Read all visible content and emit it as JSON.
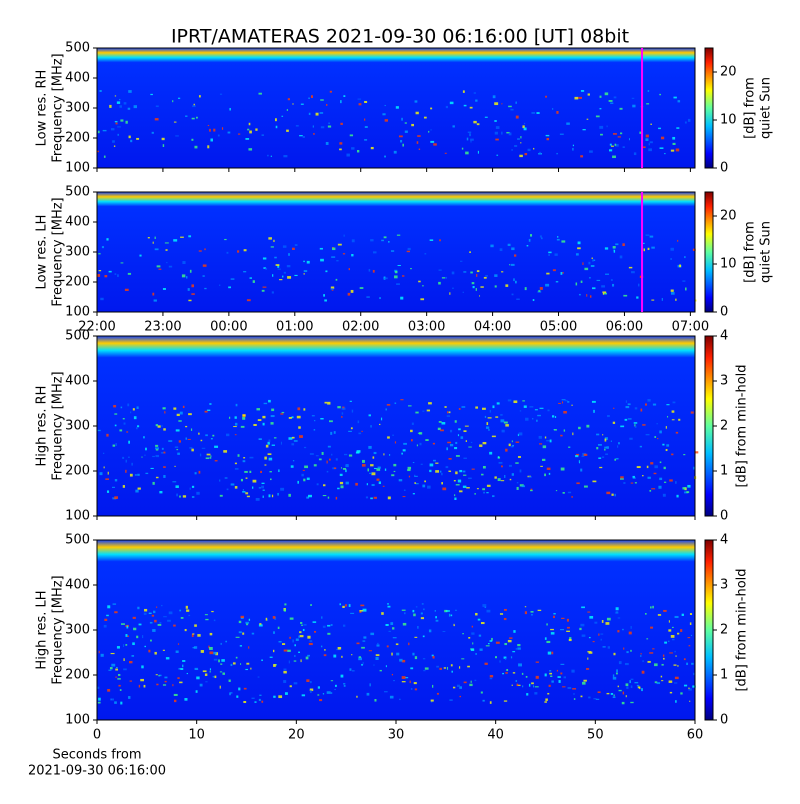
{
  "title": "IPRT/AMATERAS 2021-09-30 06:16:00 [UT]   08bit",
  "chart_data": [
    {
      "type": "heatmap",
      "ylabel": [
        "Low res. RH",
        "Frequency [MHz]"
      ],
      "ylim": [
        100,
        500
      ],
      "yticks": [
        100,
        200,
        300,
        400,
        500
      ],
      "xlim": [
        22,
        31.07
      ],
      "xticks": [
        {
          "value": 22,
          "label": "22:00"
        },
        {
          "value": 23,
          "label": "23:00"
        },
        {
          "value": 24,
          "label": "00:00"
        },
        {
          "value": 25,
          "label": "01:00"
        },
        {
          "value": 26,
          "label": "02:00"
        },
        {
          "value": 27,
          "label": "03:00"
        },
        {
          "value": 28,
          "label": "04:00"
        },
        {
          "value": 29,
          "label": "05:00"
        },
        {
          "value": 30,
          "label": "06:00"
        },
        {
          "value": 31,
          "label": "07:00"
        }
      ],
      "show_xticklabels": false,
      "marker": {
        "x": 30.2667,
        "color": "#ff00ff"
      },
      "clim": [
        0,
        25
      ],
      "cticks": [
        0,
        10,
        20
      ],
      "clabel": [
        "[dB] from",
        "quiet Sun"
      ]
    },
    {
      "type": "heatmap",
      "ylabel": [
        "Low res. LH",
        "Frequency [MHz]"
      ],
      "ylim": [
        100,
        500
      ],
      "yticks": [
        100,
        200,
        300,
        400,
        500
      ],
      "xlim": [
        22,
        31.07
      ],
      "xticks": [
        {
          "value": 22,
          "label": "22:00"
        },
        {
          "value": 23,
          "label": "23:00"
        },
        {
          "value": 24,
          "label": "00:00"
        },
        {
          "value": 25,
          "label": "01:00"
        },
        {
          "value": 26,
          "label": "02:00"
        },
        {
          "value": 27,
          "label": "03:00"
        },
        {
          "value": 28,
          "label": "04:00"
        },
        {
          "value": 29,
          "label": "05:00"
        },
        {
          "value": 30,
          "label": "06:00"
        },
        {
          "value": 31,
          "label": "07:00"
        }
      ],
      "show_xticklabels": true,
      "marker": {
        "x": 30.2667,
        "color": "#ff00ff"
      },
      "clim": [
        0,
        25
      ],
      "cticks": [
        0,
        10,
        20
      ],
      "clabel": [
        "[dB] from",
        "quiet Sun"
      ]
    },
    {
      "type": "heatmap",
      "ylabel": [
        "High res. RH",
        "Frequency [MHz]"
      ],
      "ylim": [
        100,
        500
      ],
      "yticks": [
        100,
        200,
        300,
        400,
        500
      ],
      "xlim": [
        0,
        60
      ],
      "xticks": [
        0,
        10,
        20,
        30,
        40,
        50,
        60
      ],
      "show_xticklabels": false,
      "clim": [
        0,
        4
      ],
      "cticks": [
        0,
        1,
        2,
        3,
        4
      ],
      "clabel": [
        "[dB] from min-hold"
      ]
    },
    {
      "type": "heatmap",
      "ylabel": [
        "High res. LH",
        "Frequency [MHz]"
      ],
      "ylim": [
        100,
        500
      ],
      "yticks": [
        100,
        200,
        300,
        400,
        500
      ],
      "xlim": [
        0,
        60
      ],
      "xticks": [
        0,
        10,
        20,
        30,
        40,
        50,
        60
      ],
      "show_xticklabels": true,
      "xlabel": [
        "Seconds from",
        "2021-09-30 06:16:00"
      ],
      "clim": [
        0,
        4
      ],
      "cticks": [
        0,
        1,
        2,
        3,
        4
      ],
      "clabel": [
        "[dB] from min-hold"
      ]
    }
  ]
}
